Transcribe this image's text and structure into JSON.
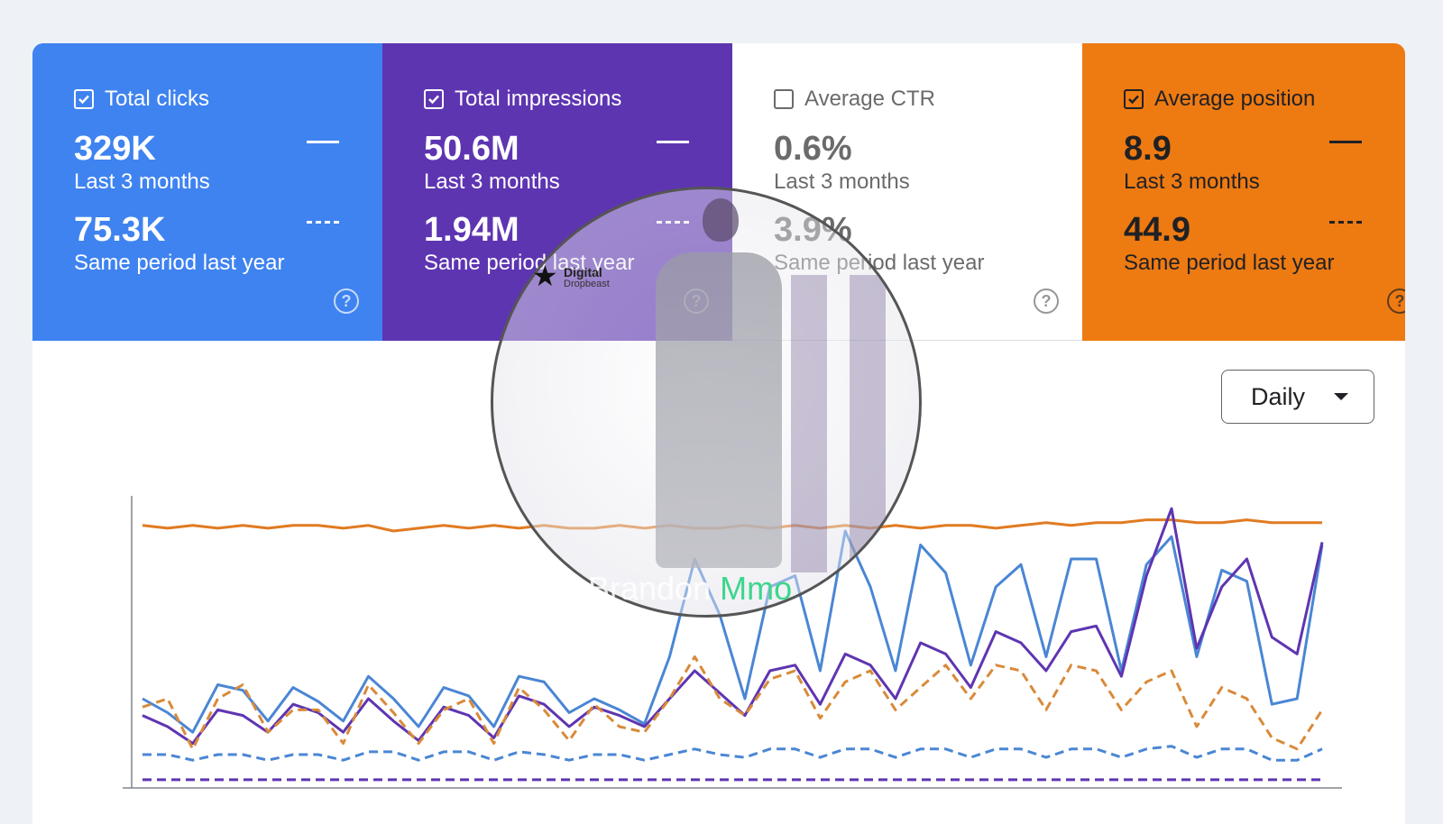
{
  "cards": [
    {
      "label": "Total clicks",
      "checked": true,
      "value": "329K",
      "period": "Last 3 months",
      "prev_value": "75.3K",
      "prev_period": "Same period last year",
      "color": "#3f83f0"
    },
    {
      "label": "Total impressions",
      "checked": true,
      "value": "50.6M",
      "period": "Last 3 months",
      "prev_value": "1.94M",
      "prev_period": "Same period last year",
      "color": "#5e35b1"
    },
    {
      "label": "Average CTR",
      "checked": false,
      "value": "0.6%",
      "period": "Last 3 months",
      "prev_value": "3.9%",
      "prev_period": "Same period last year",
      "color": "#ffffff"
    },
    {
      "label": "Average position",
      "checked": true,
      "value": "8.9",
      "period": "Last 3 months",
      "prev_value": "44.9",
      "prev_period": "Same period last year",
      "color": "#ee7a12"
    }
  ],
  "granularity": {
    "selected": "Daily"
  },
  "watermark": {
    "logo_line1": "Digital",
    "logo_line2": "Dropbeast",
    "brand_a": "Brandon",
    "brand_b": "Mmo"
  },
  "chart_data": {
    "type": "line",
    "grid": false,
    "series": [
      {
        "color": "#e07b22",
        "style": "solid",
        "values": [
          92,
          91,
          92,
          91,
          92,
          91,
          92,
          92,
          91,
          92,
          90,
          91,
          92,
          91,
          92,
          91,
          92,
          91,
          91,
          92,
          91,
          92,
          91,
          91,
          92,
          91,
          92,
          91,
          92,
          91,
          92,
          91,
          92,
          92,
          91,
          92,
          93,
          92,
          93,
          93,
          94,
          94,
          93,
          93,
          94,
          93,
          93,
          93
        ]
      },
      {
        "color": "#4a86d4",
        "style": "solid",
        "values": [
          30,
          25,
          18,
          35,
          33,
          22,
          34,
          29,
          22,
          38,
          30,
          20,
          34,
          31,
          20,
          38,
          36,
          25,
          30,
          26,
          21,
          45,
          80,
          60,
          30,
          70,
          74,
          40,
          90,
          70,
          40,
          85,
          75,
          42,
          70,
          78,
          45,
          80,
          80,
          40,
          78,
          88,
          45,
          76,
          72,
          28,
          30,
          85
        ]
      },
      {
        "color": "#5e35b1",
        "style": "solid",
        "values": [
          24,
          20,
          14,
          26,
          24,
          18,
          28,
          25,
          18,
          30,
          22,
          15,
          27,
          24,
          16,
          31,
          28,
          20,
          27,
          24,
          20,
          30,
          40,
          32,
          24,
          40,
          42,
          28,
          46,
          42,
          30,
          50,
          46,
          34,
          54,
          50,
          40,
          54,
          56,
          38,
          74,
          98,
          48,
          70,
          80,
          52,
          46,
          86
        ]
      },
      {
        "color": "#d98a3a",
        "style": "dashed",
        "values": [
          27,
          30,
          12,
          30,
          35,
          18,
          26,
          26,
          14,
          35,
          25,
          14,
          26,
          30,
          14,
          34,
          26,
          15,
          28,
          20,
          18,
          30,
          45,
          30,
          24,
          37,
          40,
          23,
          36,
          40,
          26,
          34,
          42,
          30,
          42,
          40,
          26,
          42,
          40,
          26,
          36,
          40,
          20,
          34,
          30,
          16,
          12,
          26
        ]
      },
      {
        "color": "#4a86d4",
        "style": "dashed",
        "values": [
          10,
          10,
          8,
          10,
          10,
          8,
          10,
          10,
          8,
          11,
          11,
          8,
          11,
          11,
          8,
          11,
          10,
          8,
          10,
          10,
          8,
          10,
          12,
          10,
          9,
          12,
          12,
          9,
          12,
          12,
          9,
          12,
          12,
          9,
          12,
          12,
          9,
          12,
          12,
          9,
          12,
          13,
          9,
          12,
          12,
          8,
          8,
          12
        ]
      },
      {
        "color": "#5e35b1",
        "style": "dashed",
        "values": [
          1,
          1,
          1,
          1,
          1,
          1,
          1,
          1,
          1,
          1,
          1,
          1,
          1,
          1,
          1,
          1,
          1,
          1,
          1,
          1,
          1,
          1,
          1,
          1,
          1,
          1,
          1,
          1,
          1,
          1,
          1,
          1,
          1,
          1,
          1,
          1,
          1,
          1,
          1,
          1,
          1,
          1,
          1,
          1,
          1,
          1,
          1,
          1
        ]
      }
    ]
  }
}
